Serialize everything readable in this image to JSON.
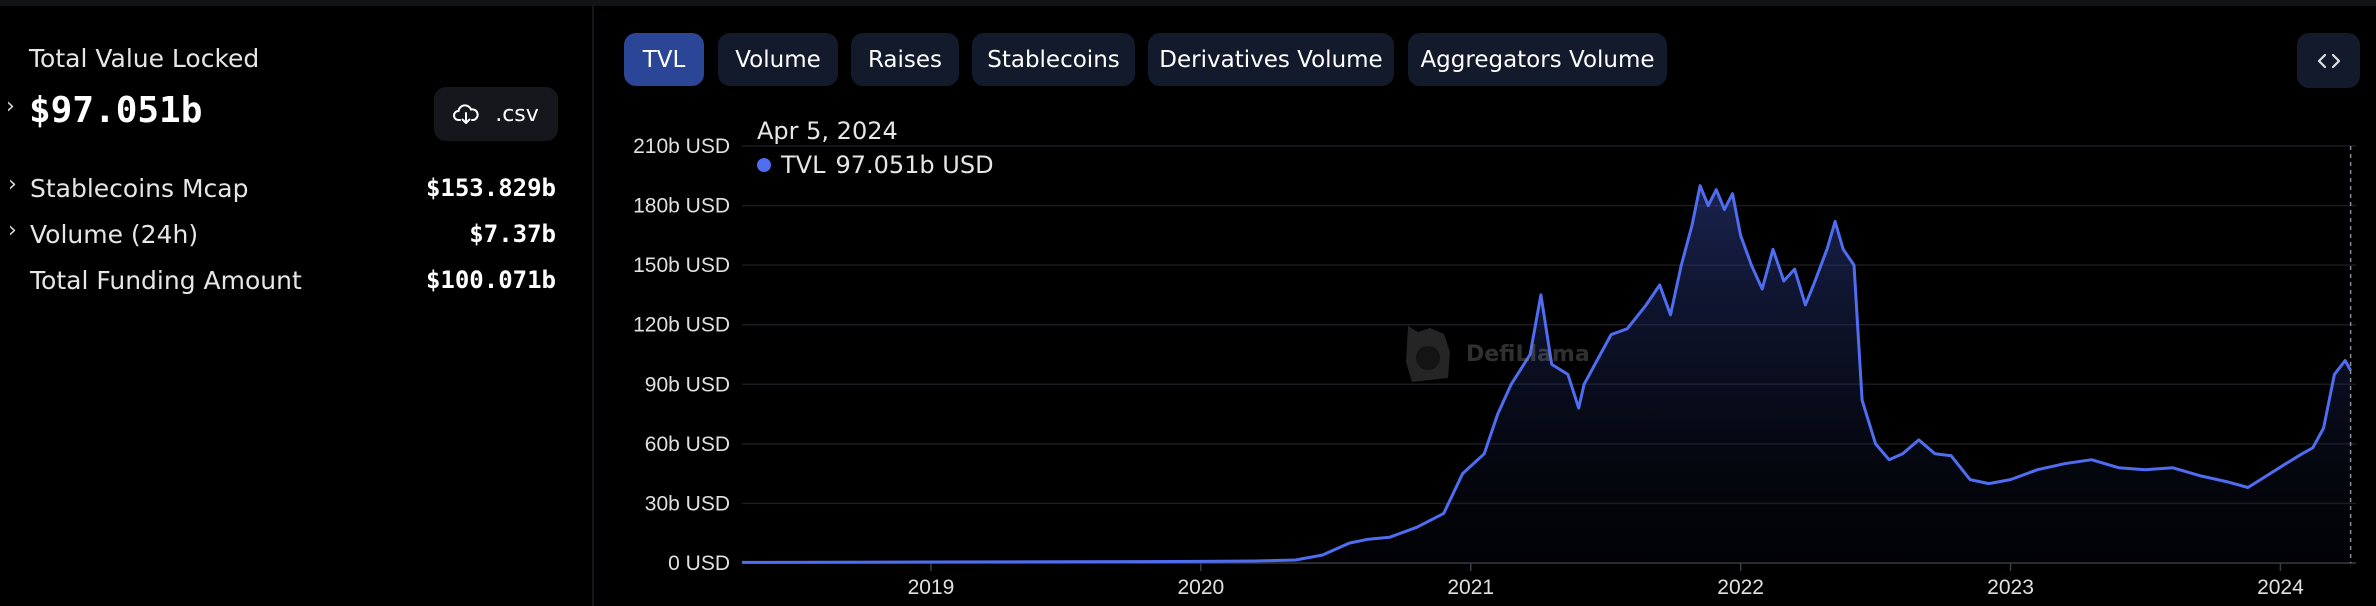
{
  "left_panel": {
    "tvl_label": "Total Value Locked",
    "tvl_value": "$97.051b",
    "csv_label": ".csv",
    "metrics": [
      {
        "label": "Stablecoins Mcap",
        "value": "$153.829b",
        "expandable": true
      },
      {
        "label": "Volume (24h)",
        "value": "$7.37b",
        "expandable": true
      },
      {
        "label": "Total Funding Amount",
        "value": "$100.071b",
        "expandable": false
      }
    ]
  },
  "tabs": [
    {
      "label": "TVL",
      "active": true
    },
    {
      "label": "Volume",
      "active": false
    },
    {
      "label": "Raises",
      "active": false
    },
    {
      "label": "Stablecoins",
      "active": false
    },
    {
      "label": "Derivatives Volume",
      "active": false
    },
    {
      "label": "Aggregators Volume",
      "active": false
    }
  ],
  "tooltip": {
    "date": "Apr 5, 2024",
    "series": "TVL",
    "value": "97.051b USD"
  },
  "watermark": {
    "text": "DefiLlama"
  },
  "colors": {
    "accent": "#2b4597",
    "line": "#4f6df0",
    "tab_bg": "#131a2c",
    "background": "#000000"
  },
  "icons": {
    "download": "cloud-download-icon",
    "embed": "code-brackets-icon",
    "expand": "chevron-right-icon"
  },
  "chart_data": {
    "type": "area",
    "title": "",
    "xlabel": "",
    "ylabel": "",
    "y_unit": "USD",
    "ylim": [
      0,
      210
    ],
    "y_ticks": [
      0,
      30,
      60,
      90,
      120,
      150,
      180,
      210
    ],
    "y_tick_labels": [
      "0 USD",
      "30b USD",
      "60b USD",
      "90b USD",
      "120b USD",
      "150b USD",
      "180b USD",
      "210b USD"
    ],
    "xlim": [
      2018.3,
      2024.28
    ],
    "x_ticks": [
      2019,
      2020,
      2021,
      2022,
      2023,
      2024
    ],
    "x_tick_labels": [
      "2019",
      "2020",
      "2021",
      "2022",
      "2023",
      "2024"
    ],
    "grid": true,
    "series": [
      {
        "name": "TVL",
        "x": [
          2018.3,
          2018.6,
          2019.0,
          2019.5,
          2020.0,
          2020.2,
          2020.35,
          2020.45,
          2020.55,
          2020.62,
          2020.7,
          2020.8,
          2020.9,
          2020.97,
          2021.05,
          2021.1,
          2021.15,
          2021.22,
          2021.26,
          2021.3,
          2021.36,
          2021.4,
          2021.42,
          2021.46,
          2021.52,
          2021.58,
          2021.65,
          2021.7,
          2021.74,
          2021.78,
          2021.82,
          2021.85,
          2021.88,
          2021.91,
          2021.94,
          2021.97,
          2022.0,
          2022.04,
          2022.08,
          2022.12,
          2022.16,
          2022.2,
          2022.24,
          2022.27,
          2022.32,
          2022.35,
          2022.38,
          2022.42,
          2022.45,
          2022.5,
          2022.55,
          2022.6,
          2022.66,
          2022.72,
          2022.78,
          2022.85,
          2022.92,
          2023.0,
          2023.1,
          2023.2,
          2023.3,
          2023.4,
          2023.5,
          2023.6,
          2023.7,
          2023.8,
          2023.88,
          2023.95,
          2024.02,
          2024.08,
          2024.12,
          2024.16,
          2024.2,
          2024.24,
          2024.26
        ],
        "values": [
          0.3,
          0.4,
          0.5,
          0.6,
          0.8,
          1.0,
          1.5,
          4,
          10,
          12,
          13,
          18,
          25,
          45,
          55,
          75,
          90,
          105,
          135,
          100,
          95,
          78,
          90,
          100,
          115,
          118,
          130,
          140,
          125,
          150,
          170,
          190,
          180,
          188,
          178,
          186,
          165,
          150,
          138,
          158,
          142,
          148,
          130,
          140,
          158,
          172,
          158,
          150,
          82,
          60,
          52,
          55,
          62,
          55,
          54,
          42,
          40,
          42,
          47,
          50,
          52,
          48,
          47,
          48,
          44,
          41,
          38,
          44,
          50,
          55,
          58,
          68,
          95,
          102,
          97
        ]
      }
    ]
  }
}
